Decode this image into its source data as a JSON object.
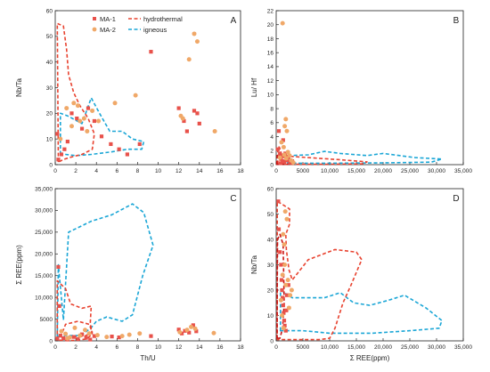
{
  "colors": {
    "ma1": "#e8514a",
    "ma2": "#f0a868",
    "hydrothermal": "#e8422f",
    "hydrothermal_a": "#c81414",
    "igneous": "#1aa6d6"
  },
  "legend": {
    "ma1": "MA-1",
    "ma2": "MA-2",
    "hydrothermal": "hydrothermal",
    "igneous": "igneous"
  },
  "chart_data": [
    {
      "panel": "A",
      "type": "scatter",
      "xlabel": "",
      "ylabel": "Nb/Ta",
      "xlim": [
        0,
        18
      ],
      "ylim": [
        0,
        60
      ],
      "xticks": [
        "0",
        "2",
        "4",
        "6",
        "8",
        "10",
        "12",
        "14",
        "16",
        "18"
      ],
      "yticks": [
        "0",
        "10",
        "20",
        "30",
        "40",
        "50",
        "60"
      ],
      "series": [
        {
          "name": "MA-1",
          "marker": "square",
          "points": [
            [
              0.3,
              2
            ],
            [
              0.6,
              4
            ],
            [
              0.9,
              6
            ],
            [
              1.2,
              9
            ],
            [
              2.1,
              18
            ],
            [
              3.2,
              22
            ],
            [
              3.8,
              17
            ],
            [
              4.5,
              11
            ],
            [
              5.4,
              8
            ],
            [
              6.2,
              6
            ],
            [
              7.0,
              4
            ],
            [
              8.2,
              8
            ],
            [
              9.3,
              44
            ],
            [
              12.0,
              22
            ],
            [
              12.5,
              17
            ],
            [
              12.8,
              13
            ],
            [
              13.5,
              21
            ],
            [
              13.8,
              20
            ],
            [
              14.0,
              16
            ],
            [
              0.2,
              12
            ],
            [
              1.6,
              20
            ],
            [
              2.6,
              14
            ]
          ]
        },
        {
          "name": "MA-2",
          "marker": "circle",
          "points": [
            [
              0.5,
              10
            ],
            [
              1.1,
              22
            ],
            [
              1.6,
              15
            ],
            [
              2.2,
              23
            ],
            [
              2.8,
              18
            ],
            [
              3.1,
              13
            ],
            [
              3.6,
              21
            ],
            [
              4.2,
              17
            ],
            [
              5.8,
              24
            ],
            [
              7.8,
              27
            ],
            [
              12.2,
              19
            ],
            [
              12.4,
              18
            ],
            [
              13.0,
              41
            ],
            [
              13.5,
              51
            ],
            [
              13.8,
              48
            ],
            [
              15.5,
              13
            ],
            [
              2.4,
              17
            ],
            [
              1.8,
              24
            ]
          ]
        }
      ],
      "hydrothermal_region": [
        [
          0.3,
          1
        ],
        [
          0.2,
          55
        ],
        [
          0.8,
          54
        ],
        [
          1.1,
          45
        ],
        [
          1.3,
          35
        ],
        [
          1.8,
          28
        ],
        [
          2.4,
          23
        ],
        [
          3.2,
          18
        ],
        [
          3.8,
          12
        ],
        [
          3.6,
          6
        ],
        [
          2.6,
          4
        ],
        [
          1.6,
          3
        ],
        [
          0.8,
          2
        ]
      ],
      "igneous_region": [
        [
          0.5,
          4
        ],
        [
          0.5,
          20
        ],
        [
          1.2,
          19
        ],
        [
          2.6,
          16
        ],
        [
          3.5,
          26
        ],
        [
          4.3,
          20
        ],
        [
          5.3,
          13
        ],
        [
          6.5,
          13
        ],
        [
          7.5,
          10
        ],
        [
          8.6,
          9
        ],
        [
          8.4,
          6
        ],
        [
          7.0,
          6
        ],
        [
          5.5,
          5
        ],
        [
          3.5,
          4
        ],
        [
          2.0,
          3.5
        ],
        [
          1.0,
          4
        ]
      ]
    },
    {
      "panel": "B",
      "type": "scatter",
      "xlabel": "",
      "ylabel": "Lu/ Hf",
      "xlim": [
        0,
        35000
      ],
      "ylim": [
        0,
        22
      ],
      "xticks": [
        "0",
        "5000",
        "10,000",
        "15,000",
        "20,000",
        "25,000",
        "30,000",
        "35,000"
      ],
      "yticks": [
        "0",
        "2",
        "4",
        "6",
        "8",
        "10",
        "12",
        "14",
        "16",
        "18",
        "20",
        "22"
      ],
      "series": [
        {
          "name": "MA-1",
          "marker": "square",
          "points": [
            [
              300,
              2.2
            ],
            [
              500,
              4.8
            ],
            [
              700,
              1.6
            ],
            [
              900,
              0.8
            ],
            [
              1100,
              1.2
            ],
            [
              1300,
              3.5
            ],
            [
              1500,
              0.4
            ],
            [
              1700,
              1.6
            ],
            [
              2000,
              0.6
            ],
            [
              2300,
              1.0
            ],
            [
              2600,
              0.3
            ],
            [
              3000,
              0.5
            ],
            [
              800,
              0.2
            ],
            [
              1200,
              0.5
            ]
          ]
        },
        {
          "name": "MA-2",
          "marker": "circle",
          "points": [
            [
              1200,
              20.2
            ],
            [
              1800,
              6.5
            ],
            [
              1600,
              5.5
            ],
            [
              2000,
              4.8
            ],
            [
              1000,
              3.2
            ],
            [
              1400,
              2.5
            ],
            [
              2200,
              1.8
            ],
            [
              2500,
              1.3
            ],
            [
              1900,
              0.9
            ],
            [
              2800,
              0.6
            ],
            [
              3200,
              0.3
            ],
            [
              700,
              1.0
            ],
            [
              1500,
              1.4
            ]
          ]
        }
      ],
      "hydrothermal_region": [
        [
          300,
          0.1
        ],
        [
          300,
          2.5
        ],
        [
          600,
          2.5
        ],
        [
          1000,
          1.5
        ],
        [
          2500,
          1.2
        ],
        [
          6000,
          1.0
        ],
        [
          12000,
          0.7
        ],
        [
          17000,
          0.4
        ],
        [
          16000,
          0.1
        ],
        [
          8000,
          0.05
        ],
        [
          2000,
          0.05
        ]
      ],
      "hydrothermal_a_region": [
        [
          100,
          0.05
        ],
        [
          200,
          1.5
        ],
        [
          1200,
          1.2
        ],
        [
          2500,
          0.6
        ],
        [
          3500,
          0.2
        ],
        [
          2000,
          0.05
        ]
      ],
      "igneous_region": [
        [
          2000,
          0.3
        ],
        [
          2500,
          1.3
        ],
        [
          6000,
          1.4
        ],
        [
          9000,
          1.9
        ],
        [
          12000,
          1.6
        ],
        [
          17000,
          1.3
        ],
        [
          20000,
          1.6
        ],
        [
          26000,
          1.0
        ],
        [
          31000,
          0.8
        ],
        [
          29000,
          0.35
        ],
        [
          20000,
          0.25
        ],
        [
          10000,
          0.2
        ],
        [
          4000,
          0.2
        ]
      ]
    },
    {
      "panel": "C",
      "type": "scatter",
      "xlabel": "Th/U",
      "ylabel": "Σ REE(ppm)",
      "xlim": [
        0,
        18
      ],
      "ylim": [
        0,
        35000
      ],
      "xticks": [
        "0",
        "2",
        "4",
        "6",
        "8",
        "10",
        "12",
        "14",
        "16",
        "18"
      ],
      "yticks": [
        "0",
        "5000",
        "10,000",
        "15,000",
        "20,000",
        "25,000",
        "30,000",
        "35,000"
      ],
      "series": [
        {
          "name": "MA-1",
          "marker": "square",
          "points": [
            [
              0.2,
              500
            ],
            [
              0.5,
              1200
            ],
            [
              0.8,
              600
            ],
            [
              1.2,
              300
            ],
            [
              1.8,
              900
            ],
            [
              2.2,
              400
            ],
            [
              2.6,
              1500
            ],
            [
              3.0,
              700
            ],
            [
              3.4,
              300
            ],
            [
              3.8,
              1100
            ],
            [
              5.5,
              1000
            ],
            [
              6.2,
              800
            ],
            [
              9.3,
              1100
            ],
            [
              12.0,
              2600
            ],
            [
              12.3,
              1700
            ],
            [
              12.6,
              2300
            ],
            [
              13.0,
              1900
            ],
            [
              13.4,
              3600
            ],
            [
              13.7,
              2200
            ],
            [
              0.3,
              17000
            ],
            [
              0.4,
              8000
            ]
          ]
        },
        {
          "name": "MA-2",
          "marker": "circle",
          "points": [
            [
              0.6,
              2200
            ],
            [
              1.0,
              1600
            ],
            [
              1.4,
              800
            ],
            [
              1.9,
              3000
            ],
            [
              2.4,
              1200
            ],
            [
              2.9,
              2500
            ],
            [
              3.3,
              1700
            ],
            [
              4.1,
              1300
            ],
            [
              5.0,
              900
            ],
            [
              6.5,
              1100
            ],
            [
              7.2,
              1400
            ],
            [
              8.2,
              1700
            ],
            [
              12.1,
              2000
            ],
            [
              12.8,
              2500
            ],
            [
              13.2,
              3200
            ],
            [
              13.6,
              2800
            ],
            [
              15.4,
              1800
            ],
            [
              1.2,
              600
            ]
          ]
        }
      ],
      "hydrothermal_region": [
        [
          0.2,
          200
        ],
        [
          0.2,
          13800
        ],
        [
          1.0,
          12000
        ],
        [
          1.5,
          8500
        ],
        [
          2.6,
          7500
        ],
        [
          3.5,
          8000
        ],
        [
          3.4,
          4000
        ],
        [
          3.6,
          1500
        ],
        [
          3.0,
          400
        ],
        [
          1.8,
          100
        ],
        [
          0.8,
          100
        ]
      ],
      "hydrothermal_inner_region": [
        [
          0.5,
          800
        ],
        [
          1.0,
          3800
        ],
        [
          2.2,
          4500
        ],
        [
          3.3,
          3800
        ],
        [
          3.6,
          2000
        ],
        [
          2.8,
          1000
        ],
        [
          1.5,
          900
        ]
      ],
      "igneous_region": [
        [
          0.2,
          1000
        ],
        [
          0.3,
          17500
        ],
        [
          0.8,
          4800
        ],
        [
          1.3,
          25000
        ],
        [
          3.5,
          27500
        ],
        [
          5.5,
          29000
        ],
        [
          7.5,
          31500
        ],
        [
          8.6,
          29500
        ],
        [
          9.5,
          22000
        ],
        [
          8.5,
          15000
        ],
        [
          7.5,
          6000
        ],
        [
          6.5,
          4500
        ],
        [
          5.0,
          5500
        ],
        [
          4.0,
          4500
        ],
        [
          3.5,
          3000
        ],
        [
          2.5,
          1200
        ],
        [
          1.0,
          1200
        ]
      ]
    },
    {
      "panel": "D",
      "type": "scatter",
      "xlabel": "Σ REE(ppm)",
      "ylabel": "Nb/Ta",
      "xlim": [
        0,
        35000
      ],
      "ylim": [
        0,
        60
      ],
      "xticks": [
        "0",
        "5000",
        "10,000",
        "15,000",
        "20,000",
        "25,000",
        "30,000",
        "35,000"
      ],
      "yticks": [
        "0",
        "10",
        "20",
        "30",
        "40",
        "50",
        "60"
      ],
      "series": [
        {
          "name": "MA-1",
          "marker": "square",
          "points": [
            [
              400,
              55
            ],
            [
              500,
              44
            ],
            [
              700,
              35
            ],
            [
              900,
              30
            ],
            [
              1000,
              24
            ],
            [
              1100,
              20
            ],
            [
              1200,
              17
            ],
            [
              1300,
              14
            ],
            [
              1400,
              11
            ],
            [
              1500,
              8
            ],
            [
              1600,
              6
            ],
            [
              1800,
              4
            ],
            [
              2000,
              18
            ],
            [
              2300,
              22
            ],
            [
              1900,
              12
            ]
          ]
        },
        {
          "name": "MA-2",
          "marker": "circle",
          "points": [
            [
              1300,
              42
            ],
            [
              1500,
              38
            ],
            [
              1700,
              51
            ],
            [
              2000,
              48
            ],
            [
              1600,
              30
            ],
            [
              1200,
              26
            ],
            [
              1800,
              22
            ],
            [
              2200,
              24
            ],
            [
              2600,
              18
            ],
            [
              2400,
              13
            ],
            [
              900,
              16
            ],
            [
              1100,
              10
            ],
            [
              2900,
              20
            ],
            [
              1400,
              5
            ]
          ]
        }
      ],
      "hydrothermal_region": [
        [
          200,
          0.5
        ],
        [
          200,
          55
        ],
        [
          1000,
          54
        ],
        [
          2500,
          52
        ],
        [
          2500,
          46
        ],
        [
          1800,
          42
        ],
        [
          1900,
          36
        ],
        [
          2400,
          28
        ],
        [
          3000,
          24
        ],
        [
          6000,
          32
        ],
        [
          11000,
          36
        ],
        [
          15000,
          35
        ],
        [
          16000,
          32
        ],
        [
          14000,
          22
        ],
        [
          12500,
          15
        ],
        [
          11000,
          5
        ],
        [
          10000,
          1
        ],
        [
          8000,
          0.5
        ],
        [
          4000,
          0.5
        ],
        [
          1500,
          0.5
        ]
      ],
      "hydrothermal_a_region": [
        [
          150,
          1
        ],
        [
          250,
          40
        ],
        [
          700,
          42
        ],
        [
          1300,
          38
        ],
        [
          1500,
          15
        ],
        [
          1200,
          5
        ],
        [
          700,
          1
        ]
      ],
      "igneous_region": [
        [
          800,
          4
        ],
        [
          800,
          20
        ],
        [
          3000,
          17
        ],
        [
          6500,
          17
        ],
        [
          9000,
          17
        ],
        [
          12000,
          19
        ],
        [
          14500,
          15
        ],
        [
          17500,
          14
        ],
        [
          21000,
          16
        ],
        [
          24000,
          18
        ],
        [
          28000,
          13
        ],
        [
          31000,
          8
        ],
        [
          30500,
          5
        ],
        [
          25000,
          4
        ],
        [
          18000,
          3
        ],
        [
          10000,
          3
        ],
        [
          5000,
          4
        ],
        [
          2000,
          4
        ]
      ]
    }
  ]
}
